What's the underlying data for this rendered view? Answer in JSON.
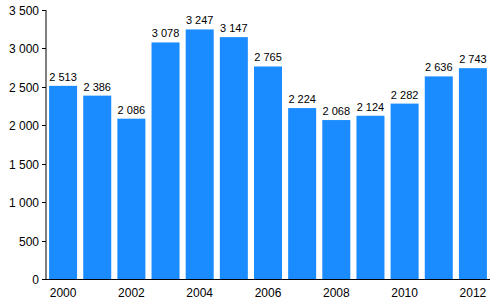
{
  "chart_data": {
    "type": "bar",
    "categories": [
      "2000",
      null,
      "2002",
      null,
      "2004",
      null,
      "2006",
      null,
      "2008",
      null,
      "2010",
      null,
      "2012"
    ],
    "values": [
      2513,
      2386,
      2086,
      3078,
      3247,
      3147,
      2765,
      2224,
      2068,
      2124,
      2282,
      2636,
      2743
    ],
    "value_labels": [
      "2 513",
      "2 386",
      "2 086",
      "3 078",
      "3 247",
      "3 147",
      "2 765",
      "2 224",
      "2 068",
      "2 124",
      "2 282",
      "2 636",
      "2 743"
    ],
    "color": "#1a8cff",
    "ylim": [
      0,
      3500
    ],
    "yticks": [
      0,
      500,
      {
        "value": 1000,
        "label": "1 000"
      },
      {
        "value": 1500,
        "label": "1 500"
      },
      {
        "value": 2000,
        "label": "2 000"
      },
      {
        "value": 2500,
        "label": "2 500"
      },
      {
        "value": 3000,
        "label": "3 000"
      },
      {
        "value": 3500,
        "label": "3 500"
      }
    ],
    "grid": false,
    "data_labels": true
  }
}
